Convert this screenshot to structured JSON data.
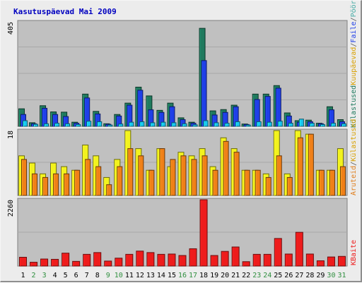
{
  "title": "Kasutuspäevad Mai 2009",
  "colors": {
    "title": "#0000c0",
    "plot_bg": "#c0c0c0",
    "grid": "#a8a8a8",
    "visits": "#1f7a5e",
    "pages": "#1f3fe8",
    "files": "#19c7f0",
    "hits": "#2fc8c0",
    "sites": "#f2f21e",
    "kbytes": "#ee1c1c",
    "weekday_label": "#000000",
    "weekend_label": "#2f8f3f",
    "hits_label": "#4caea8",
    "files_label": "#1f3fe8",
    "pages_label": "#1f7a5e",
    "sites_label": "#d8a000",
    "visits_label": "#e08020"
  },
  "labels": {
    "top_side": [
      "Külastused",
      "Kuupäevad",
      "/",
      "Faile",
      "/",
      "Pöördumisi"
    ],
    "mid_side": [
      "Aruteid",
      "/",
      "Külastused"
    ],
    "bottom_side": "KBaite"
  },
  "chart_data": [
    {
      "type": "bar",
      "title": "Kasutuspäevad Mai 2009",
      "ymax_label": "405",
      "ylim": [
        0,
        405
      ],
      "categories": [
        "1",
        "2",
        "3",
        "4",
        "5",
        "6",
        "7",
        "8",
        "9",
        "10",
        "11",
        "12",
        "13",
        "14",
        "15",
        "16",
        "17",
        "18",
        "19",
        "20",
        "21",
        "22",
        "23",
        "24",
        "25",
        "26",
        "27",
        "28",
        "29",
        "30",
        "31"
      ],
      "weekend": [
        "2",
        "3",
        "9",
        "10",
        "16",
        "17",
        "23",
        "24",
        "30",
        "31"
      ],
      "series": [
        {
          "key": "pages_back",
          "values": [
            68,
            14,
            80,
            56,
            55,
            16,
            125,
            58,
            10,
            46,
            90,
            152,
            118,
            62,
            90,
            33,
            16,
            380,
            60,
            65,
            82,
            9,
            125,
            125,
            158,
            52,
            22,
            24,
            12,
            76,
            26
          ]
        },
        {
          "key": "pages",
          "values": [
            46,
            10,
            70,
            46,
            38,
            12,
            110,
            48,
            8,
            40,
            82,
            140,
            64,
            54,
            76,
            26,
            12,
            255,
            44,
            54,
            76,
            7,
            104,
            116,
            148,
            40,
            16,
            18,
            10,
            64,
            18
          ]
        },
        {
          "key": "files",
          "values": [
            22,
            8,
            10,
            12,
            10,
            7,
            20,
            18,
            5,
            9,
            16,
            18,
            14,
            16,
            14,
            10,
            6,
            22,
            14,
            12,
            18,
            5,
            18,
            16,
            20,
            12,
            28,
            12,
            7,
            12,
            10
          ]
        }
      ]
    },
    {
      "type": "bar",
      "ymax_label": "18",
      "ylim": [
        0,
        18
      ],
      "categories": [
        "1",
        "2",
        "3",
        "4",
        "5",
        "6",
        "7",
        "8",
        "9",
        "10",
        "11",
        "12",
        "13",
        "14",
        "15",
        "16",
        "17",
        "18",
        "19",
        "20",
        "21",
        "22",
        "23",
        "24",
        "25",
        "26",
        "27",
        "28",
        "29",
        "30",
        "31"
      ],
      "series": [
        {
          "key": "sites",
          "values": [
            11,
            9,
            6,
            9,
            8,
            7,
            14,
            11,
            5,
            10,
            18,
            13,
            7,
            13,
            8,
            12,
            11,
            13,
            8,
            16,
            13,
            7,
            7,
            6,
            18,
            6,
            18,
            17,
            7,
            7,
            13
          ]
        },
        {
          "key": "visits",
          "values": [
            10,
            6,
            5,
            6,
            6,
            7,
            10,
            8,
            3,
            8,
            13,
            11,
            7,
            13,
            10,
            11,
            10,
            11,
            7,
            15,
            12,
            7,
            7,
            5,
            11,
            5,
            16,
            17,
            7,
            7,
            8
          ]
        }
      ]
    },
    {
      "type": "bar",
      "ymax_label": "2260",
      "ylim": [
        0,
        2260
      ],
      "categories": [
        "1",
        "2",
        "3",
        "4",
        "5",
        "6",
        "7",
        "8",
        "9",
        "10",
        "11",
        "12",
        "13",
        "14",
        "15",
        "16",
        "17",
        "18",
        "19",
        "20",
        "21",
        "22",
        "23",
        "24",
        "25",
        "26",
        "27",
        "28",
        "29",
        "30",
        "31"
      ],
      "series": [
        {
          "key": "kbytes",
          "values": [
            300,
            130,
            240,
            230,
            440,
            160,
            400,
            460,
            170,
            270,
            400,
            510,
            460,
            400,
            410,
            360,
            590,
            2260,
            360,
            500,
            650,
            150,
            400,
            400,
            940,
            410,
            1150,
            410,
            180,
            310,
            330
          ]
        }
      ]
    }
  ]
}
